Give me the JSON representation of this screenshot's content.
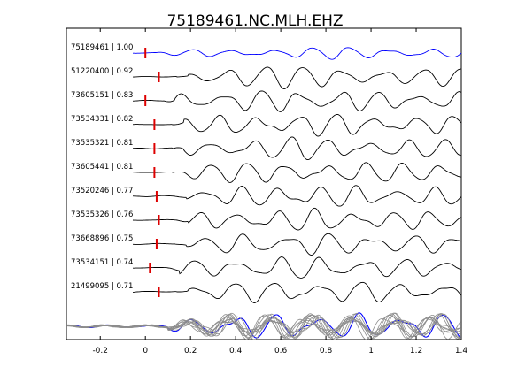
{
  "title": "75189461.NC.MLH.EHZ",
  "chart_data": {
    "type": "line",
    "title": "75189461.NC.MLH.EHZ",
    "xlabel": "",
    "ylabel": "",
    "xlim": [
      -0.35,
      1.4
    ],
    "xticks": [
      "-0.2",
      "0",
      "0.2",
      "0.4",
      "0.6",
      "0.8",
      "1",
      "1.2",
      "1.4"
    ],
    "xtick_values": [
      -0.2,
      0,
      0.2,
      0.4,
      0.6,
      0.8,
      1.0,
      1.2,
      1.4
    ],
    "grid": false,
    "colors": {
      "reference": "#0000ff",
      "trace": "#000000",
      "pick": "#dd0000",
      "stack": "#8c8c8c"
    },
    "traces": [
      {
        "label": "75189461 | 1.00",
        "pick_time": 0.0,
        "reference": true
      },
      {
        "label": "51220400 | 0.92",
        "pick_time": 0.06
      },
      {
        "label": "73605151 | 0.83",
        "pick_time": 0.0
      },
      {
        "label": "73534331 | 0.82",
        "pick_time": 0.04
      },
      {
        "label": "73535321 | 0.81",
        "pick_time": 0.04
      },
      {
        "label": "73605441 | 0.81",
        "pick_time": 0.04
      },
      {
        "label": "73520246 | 0.77",
        "pick_time": 0.05
      },
      {
        "label": "73535326 | 0.76",
        "pick_time": 0.06
      },
      {
        "label": "73668896 | 0.75",
        "pick_time": 0.05
      },
      {
        "label": "73534151 | 0.74",
        "pick_time": 0.02
      },
      {
        "label": "21499095 | 0.71",
        "pick_time": 0.06
      }
    ]
  }
}
